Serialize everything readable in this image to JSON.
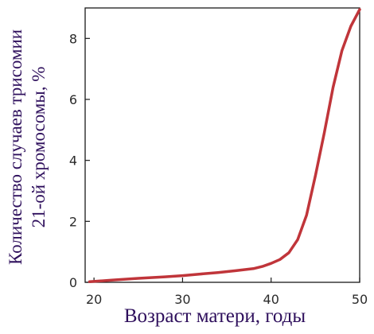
{
  "chart_data": {
    "type": "line",
    "title": "",
    "xlabel": "Возраст матери, годы",
    "ylabel_lines": [
      "Количество случаев трисомии",
      "21-ой хромосомы, %"
    ],
    "xlim": [
      19,
      50
    ],
    "ylim": [
      0,
      9
    ],
    "xticks": [
      20,
      30,
      40,
      50
    ],
    "yticks": [
      0,
      2,
      4,
      6,
      8
    ],
    "grid": false,
    "legend": "none",
    "colors": {
      "line": "#c0353a",
      "axis": "#1a1a1a",
      "label": "#2e0f5c"
    },
    "series": [
      {
        "x": [
          19.5,
          22,
          25,
          28,
          30,
          32,
          34,
          36,
          38,
          39,
          40,
          41,
          42,
          43,
          44,
          45,
          46,
          47,
          48,
          49,
          50
        ],
        "values": [
          0.02,
          0.07,
          0.13,
          0.18,
          0.22,
          0.27,
          0.32,
          0.38,
          0.45,
          0.52,
          0.62,
          0.75,
          0.97,
          1.4,
          2.2,
          3.5,
          4.9,
          6.4,
          7.6,
          8.4,
          8.95
        ]
      }
    ]
  }
}
